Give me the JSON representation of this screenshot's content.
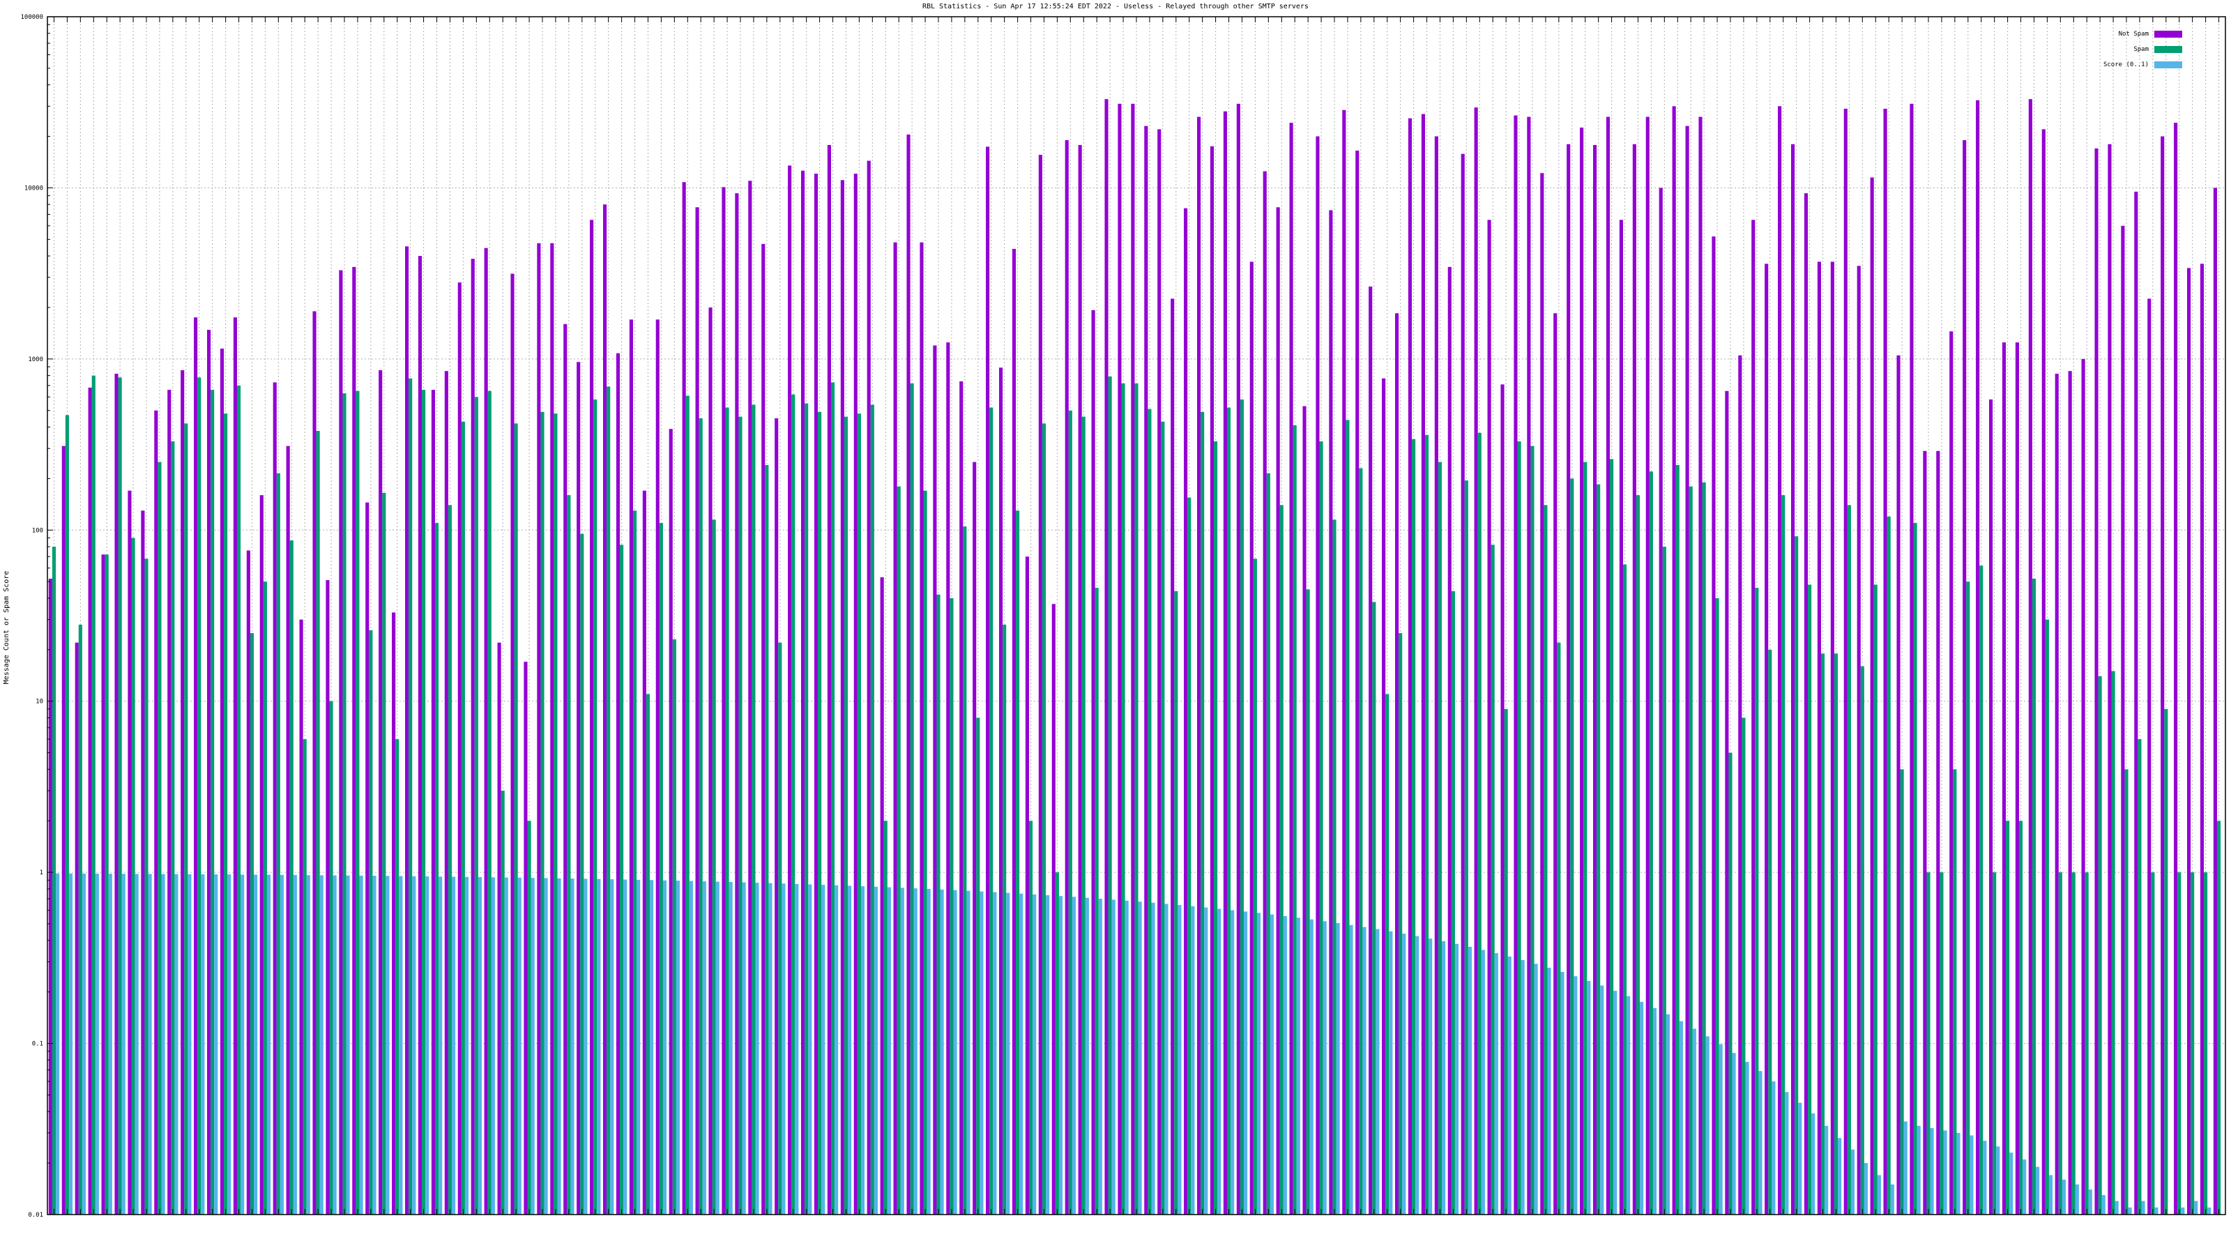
{
  "chart_data": {
    "type": "bar",
    "title": "RBL Statistics - Sun Apr 17 12:55:24 EDT 2022 - Useless - Relayed through other SMTP servers",
    "ylabel": "Message Count or Spam Score",
    "xlabel": "",
    "y_scale": "log",
    "ylim": [
      0.01,
      100000
    ],
    "y_ticks": [
      "0.01",
      "0.1",
      "1",
      "10",
      "100",
      "1000",
      "10000",
      "100000"
    ],
    "y_grid": true,
    "x_grid": true,
    "legend_position": "top-right",
    "colors": {
      "not_spam": "#9400d3",
      "spam": "#009e73",
      "score": "#56b4e9"
    },
    "series": [
      {
        "name": "Not Spam",
        "color": "#9400d3",
        "values": [
          52,
          310,
          22,
          680,
          72,
          820,
          170,
          130,
          500,
          660,
          860,
          1750,
          1480,
          1150,
          1750,
          76,
          160,
          730,
          310,
          30,
          1900,
          51,
          3300,
          3450,
          145,
          860,
          33,
          4550,
          4000,
          660,
          850,
          2800,
          3850,
          4450,
          22,
          3150,
          17,
          4750,
          4750,
          1600,
          960,
          6500,
          8000,
          1080,
          1700,
          170,
          1700,
          390,
          10800,
          7700,
          2000,
          10100,
          9300,
          11000,
          4700,
          450,
          13500,
          12600,
          12100,
          17800,
          11100,
          12100,
          14400,
          53,
          4800,
          20500,
          4800,
          1200,
          1250,
          740,
          250,
          17400,
          890,
          4400,
          70,
          15600,
          37,
          19000,
          17800,
          1930,
          33000,
          31000,
          31000,
          23000,
          22000,
          2250,
          7600,
          26000,
          17500,
          28000,
          31000,
          3700,
          12500,
          7700,
          24000,
          530,
          20000,
          7400,
          28500,
          16500,
          2650,
          770,
          1850,
          25500,
          27000,
          20000,
          3450,
          15800,
          29500,
          6500,
          710,
          26500,
          26000,
          12200,
          1850,
          18000,
          22500,
          17800,
          26000,
          6500,
          18000,
          26000,
          10000,
          30000,
          23000,
          26000,
          5200,
          650,
          1050,
          6500,
          3600,
          30000,
          18000,
          9300,
          3700,
          3700,
          29000,
          3500,
          11500,
          29000,
          1050,
          31000,
          290,
          290,
          1450,
          19000,
          32500,
          580,
          1250,
          1250,
          33000,
          22000,
          820,
          850,
          1000,
          17000,
          18000,
          6000,
          9500,
          2250,
          20000,
          24000,
          3400,
          3600,
          10000
        ]
      },
      {
        "name": "Spam",
        "color": "#009e73",
        "values": [
          80,
          470,
          28,
          800,
          72,
          780,
          90,
          68,
          250,
          330,
          420,
          780,
          660,
          480,
          700,
          25,
          50,
          215,
          87,
          6,
          380,
          10,
          630,
          650,
          26,
          165,
          6,
          770,
          660,
          110,
          140,
          430,
          600,
          650,
          3,
          420,
          2,
          490,
          480,
          160,
          95,
          580,
          690,
          82,
          130,
          11,
          110,
          23,
          610,
          450,
          115,
          520,
          460,
          540,
          240,
          22,
          620,
          550,
          490,
          730,
          460,
          480,
          540,
          2,
          180,
          720,
          170,
          42,
          40,
          105,
          8,
          520,
          28,
          130,
          2,
          420,
          1,
          500,
          460,
          46,
          790,
          720,
          720,
          510,
          430,
          44,
          155,
          490,
          330,
          520,
          580,
          68,
          215,
          140,
          410,
          45,
          330,
          115,
          440,
          230,
          38,
          11,
          25,
          340,
          360,
          250,
          44,
          195,
          370,
          82,
          9,
          330,
          310,
          140,
          22,
          200,
          250,
          185,
          260,
          63,
          160,
          220,
          80,
          240,
          180,
          190,
          40,
          5,
          8,
          46,
          20,
          160,
          92,
          48,
          19,
          19,
          140,
          16,
          48,
          120,
          4,
          110,
          1,
          1,
          4,
          50,
          62,
          1,
          2,
          2,
          52,
          30,
          1,
          1,
          1,
          14,
          15,
          4,
          6,
          1,
          9,
          1,
          1,
          1,
          2
        ]
      },
      {
        "name": "Score (0..1)",
        "color": "#56b4e9",
        "values": [
          0.985,
          0.984,
          0.983,
          0.982,
          0.981,
          0.98,
          0.979,
          0.978,
          0.977,
          0.976,
          0.975,
          0.974,
          0.973,
          0.972,
          0.97,
          0.969,
          0.968,
          0.966,
          0.965,
          0.963,
          0.961,
          0.96,
          0.958,
          0.956,
          0.955,
          0.953,
          0.951,
          0.949,
          0.947,
          0.944,
          0.942,
          0.94,
          0.938,
          0.935,
          0.933,
          0.931,
          0.928,
          0.925,
          0.922,
          0.92,
          0.917,
          0.914,
          0.911,
          0.907,
          0.904,
          0.901,
          0.897,
          0.894,
          0.89,
          0.886,
          0.882,
          0.878,
          0.874,
          0.869,
          0.865,
          0.86,
          0.855,
          0.85,
          0.845,
          0.84,
          0.835,
          0.829,
          0.824,
          0.818,
          0.812,
          0.806,
          0.8,
          0.793,
          0.787,
          0.78,
          0.773,
          0.766,
          0.758,
          0.751,
          0.743,
          0.735,
          0.727,
          0.719,
          0.71,
          0.701,
          0.692,
          0.683,
          0.674,
          0.664,
          0.654,
          0.644,
          0.634,
          0.623,
          0.612,
          0.601,
          0.59,
          0.579,
          0.567,
          0.555,
          0.543,
          0.531,
          0.518,
          0.505,
          0.492,
          0.479,
          0.466,
          0.452,
          0.438,
          0.424,
          0.41,
          0.396,
          0.382,
          0.367,
          0.352,
          0.337,
          0.322,
          0.307,
          0.292,
          0.277,
          0.262,
          0.247,
          0.232,
          0.218,
          0.203,
          0.189,
          0.175,
          0.161,
          0.148,
          0.135,
          0.122,
          0.11,
          0.099,
          0.088,
          0.078,
          0.069,
          0.06,
          0.052,
          0.045,
          0.039,
          0.033,
          0.028,
          0.024,
          0.02,
          0.017,
          0.015,
          0.035,
          0.033,
          0.032,
          0.031,
          0.03,
          0.029,
          0.027,
          0.025,
          0.023,
          0.021,
          0.019,
          0.017,
          0.016,
          0.015,
          0.014,
          0.013,
          0.012,
          0.011,
          0.012,
          0.011,
          0.01,
          0.011,
          0.012,
          0.011,
          0.01,
          0.011
        ]
      }
    ]
  }
}
